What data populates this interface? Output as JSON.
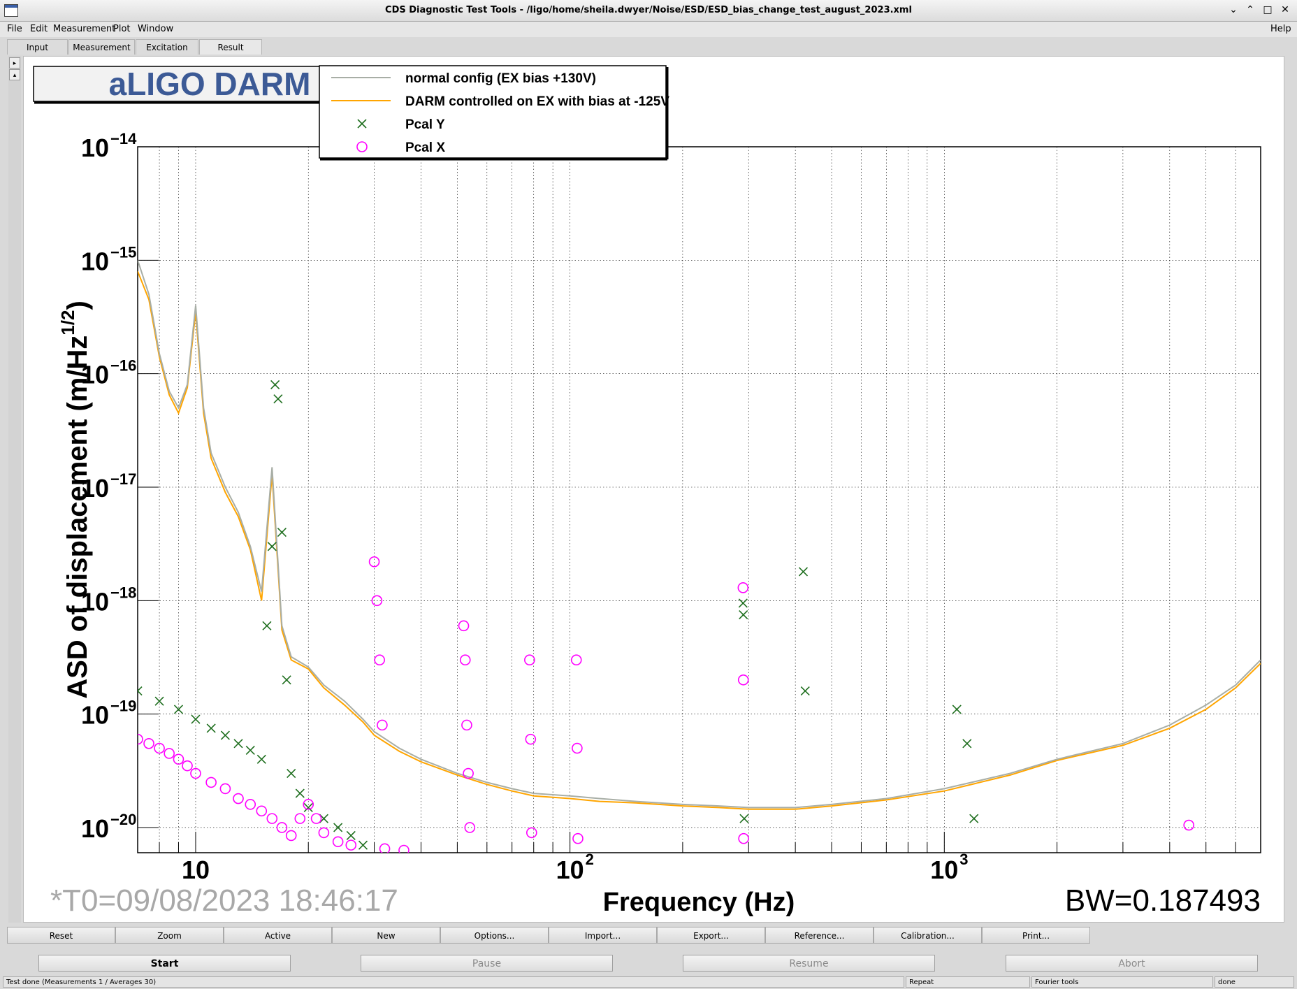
{
  "window": {
    "title": "CDS Diagnostic Test Tools - /ligo/home/sheila.dwyer/Noise/ESD/ESD_bias_change_test_august_2023.xml",
    "icon": "app-window-icon",
    "controls": [
      "minimize-icon",
      "restore-icon",
      "maximize-icon",
      "close-icon"
    ]
  },
  "menubar": {
    "items": [
      "File",
      "Edit",
      "Measurement",
      "Plot",
      "Window"
    ],
    "help": "Help"
  },
  "tabs": [
    {
      "label": "Input"
    },
    {
      "label": "Measurement"
    },
    {
      "label": "Excitation"
    },
    {
      "label": "Result",
      "active": true
    }
  ],
  "plot": {
    "title": "aLIGO DARM",
    "title_color": "#3c5a96",
    "t0": "*T0=09/08/2023 18:46:17",
    "bw": "BW=0.187493",
    "legend": [
      {
        "label": "normal config (EX bias +130V)",
        "symbol": "line",
        "color": "#a8aea6"
      },
      {
        "label": "DARM controlled on EX with bias at -125V",
        "symbol": "line",
        "color": "#ffa500"
      },
      {
        "label": "Pcal Y",
        "symbol": "cross",
        "color": "#1e6e1e"
      },
      {
        "label": "Pcal X",
        "symbol": "circle",
        "color": "#ff00ff"
      }
    ]
  },
  "chart_data": {
    "type": "line",
    "xlabel": "Frequency (Hz)",
    "ylabel": "ASD of displacement (m/Hz^1/2)",
    "xscale": "log",
    "yscale": "log",
    "xlim": [
      7,
      7000
    ],
    "ylim": [
      6e-21,
      1e-14
    ],
    "x_ticks": [
      {
        "base": "10",
        "exp": ""
      },
      {
        "base": "10",
        "exp": "2"
      },
      {
        "base": "10",
        "exp": "3"
      }
    ],
    "x_tick_values": [
      10,
      100,
      1000
    ],
    "y_ticks": [
      {
        "exp": "−14",
        "v": 1e-14
      },
      {
        "exp": "−15",
        "v": 1e-15
      },
      {
        "exp": "−16",
        "v": 1e-16
      },
      {
        "exp": "−17",
        "v": 1e-17
      },
      {
        "exp": "−18",
        "v": 1e-18
      },
      {
        "exp": "−19",
        "v": 1e-19
      },
      {
        "exp": "−20",
        "v": 1e-20
      }
    ],
    "grid": true,
    "legend_position": "top",
    "series": [
      {
        "name": "normal config (EX bias +130V)",
        "color": "#a8aea6",
        "x": [
          7,
          7.5,
          8,
          8.5,
          9,
          9.5,
          10,
          10.5,
          11,
          12,
          13,
          14,
          15,
          16,
          17,
          18,
          20,
          22,
          25,
          28,
          30,
          35,
          40,
          50,
          60,
          70,
          80,
          100,
          120,
          150,
          200,
          250,
          300,
          400,
          500,
          700,
          1000,
          1500,
          2000,
          3000,
          4000,
          5000,
          6000,
          7000
        ],
        "y": [
          1e-15,
          5e-16,
          1.5e-16,
          7e-17,
          5e-17,
          8e-17,
          4e-16,
          5e-17,
          2e-17,
          1e-17,
          6e-18,
          3e-18,
          1.2e-18,
          1.5e-17,
          6e-19,
          3.2e-19,
          2.6e-19,
          1.8e-19,
          1.3e-19,
          9e-20,
          7e-20,
          5e-20,
          4e-20,
          3e-20,
          2.5e-20,
          2.2e-20,
          2e-20,
          1.9e-20,
          1.8e-20,
          1.7e-20,
          1.6e-20,
          1.55e-20,
          1.5e-20,
          1.5e-20,
          1.6e-20,
          1.8e-20,
          2.2e-20,
          3e-20,
          4e-20,
          5.5e-20,
          8e-20,
          1.2e-19,
          1.8e-19,
          3e-19
        ]
      },
      {
        "name": "DARM controlled on EX with bias at -125V",
        "color": "#ffa500",
        "x": [
          7,
          7.5,
          8,
          8.5,
          9,
          9.5,
          10,
          10.5,
          11,
          12,
          13,
          14,
          15,
          16,
          17,
          18,
          20,
          22,
          25,
          28,
          30,
          35,
          40,
          50,
          60,
          70,
          80,
          100,
          120,
          150,
          200,
          250,
          300,
          400,
          500,
          700,
          1000,
          1500,
          2000,
          3000,
          4000,
          5000,
          6000,
          7000
        ],
        "y": [
          8e-16,
          4.5e-16,
          1.4e-16,
          6.5e-17,
          4.5e-17,
          7.5e-17,
          3.5e-16,
          4.5e-17,
          1.8e-17,
          9e-18,
          5.5e-18,
          2.8e-18,
          1e-18,
          1.3e-17,
          5.5e-19,
          3e-19,
          2.5e-19,
          1.7e-19,
          1.2e-19,
          8.5e-20,
          6.5e-20,
          4.7e-20,
          3.8e-20,
          2.9e-20,
          2.4e-20,
          2.1e-20,
          1.9e-20,
          1.8e-20,
          1.7e-20,
          1.65e-20,
          1.55e-20,
          1.5e-20,
          1.45e-20,
          1.45e-20,
          1.55e-20,
          1.75e-20,
          2.1e-20,
          2.9e-20,
          3.9e-20,
          5.3e-20,
          7.5e-20,
          1.1e-19,
          1.7e-19,
          2.8e-19
        ]
      },
      {
        "name": "Pcal Y",
        "color": "#1e6e1e",
        "x": [
          7,
          8,
          9,
          10,
          11,
          12,
          13,
          14,
          15,
          15.5,
          16,
          16.3,
          16.6,
          17,
          17.5,
          18,
          19,
          20,
          22,
          24,
          26,
          28,
          290,
          290.5,
          292,
          420,
          425,
          1080,
          1150,
          1200
        ],
        "y": [
          1.6e-19,
          1.3e-19,
          1.1e-19,
          9e-20,
          7.5e-20,
          6.5e-20,
          5.5e-20,
          4.8e-20,
          4e-20,
          6e-19,
          3e-18,
          8e-17,
          6e-17,
          4e-18,
          2e-19,
          3e-20,
          2e-20,
          1.5e-20,
          1.2e-20,
          1e-20,
          8.5e-21,
          7e-21,
          9.5e-19,
          7.5e-19,
          1.2e-20,
          1.8e-18,
          1.6e-19,
          1.1e-19,
          5.5e-20,
          1.2e-20
        ]
      },
      {
        "name": "Pcal X",
        "color": "#ff00ff",
        "x": [
          7,
          7.5,
          8,
          8.5,
          9,
          9.5,
          10,
          11,
          12,
          13,
          14,
          15,
          16,
          17,
          18,
          19,
          20,
          21,
          22,
          24,
          26,
          30,
          30.5,
          31,
          31.5,
          32,
          36,
          52,
          52.5,
          53,
          53.5,
          54,
          78,
          78.5,
          79,
          104,
          104.5,
          105,
          290,
          290.5,
          291,
          4500
        ],
        "y": [
          6e-20,
          5.5e-20,
          5e-20,
          4.5e-20,
          4e-20,
          3.5e-20,
          3e-20,
          2.5e-20,
          2.2e-20,
          1.8e-20,
          1.6e-20,
          1.4e-20,
          1.2e-20,
          1e-20,
          8.5e-21,
          1.2e-20,
          1.6e-20,
          1.2e-20,
          9e-21,
          7.5e-21,
          7e-21,
          2.2e-18,
          1e-18,
          3e-19,
          8e-20,
          6.5e-21,
          6.3e-21,
          6e-19,
          3e-19,
          8e-20,
          3e-20,
          1e-20,
          3e-19,
          6e-20,
          9e-21,
          3e-19,
          5e-20,
          8e-21,
          1.3e-18,
          2e-19,
          8e-21,
          1.05e-20
        ]
      }
    ]
  },
  "buttons": [
    "Reset",
    "Zoom",
    "Active",
    "New",
    "Options...",
    "Import...",
    "Export...",
    "Reference...",
    "Calibration...",
    "Print..."
  ],
  "controls": {
    "start": "Start",
    "pause": "Pause",
    "resume": "Resume",
    "abort": "Abort"
  },
  "status": {
    "message": "Test done (Measurements 1 / Averages 30)",
    "repeat": "Repeat",
    "fourier": "Fourier tools",
    "state": "done"
  }
}
